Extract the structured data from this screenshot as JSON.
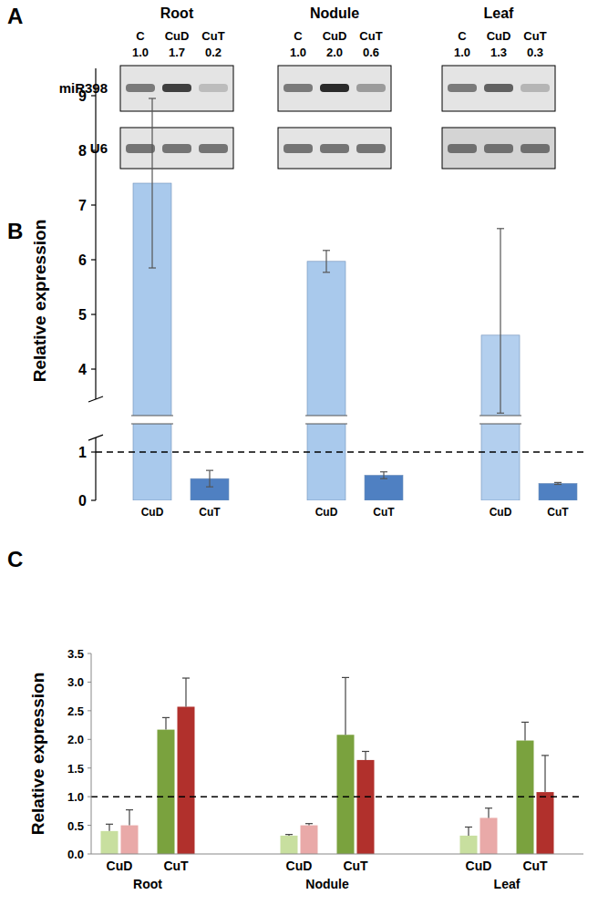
{
  "chart_data": [
    {
      "type": "blot",
      "title": "A",
      "row_labels": [
        "miR398",
        "U6"
      ],
      "panels": [
        {
          "name": "Root",
          "categories": [
            "C",
            "CuD",
            "CuT"
          ],
          "values": [
            1.0,
            1.7,
            0.2
          ],
          "value_labels": [
            "1.0",
            "1.7",
            "0.2"
          ]
        },
        {
          "name": "Nodule",
          "categories": [
            "C",
            "CuD",
            "CuT"
          ],
          "values": [
            1.0,
            2.0,
            0.6
          ],
          "value_labels": [
            "1.0",
            "2.0",
            "0.6"
          ]
        },
        {
          "name": "Leaf",
          "categories": [
            "C",
            "CuD",
            "CuT"
          ],
          "values": [
            1.0,
            1.3,
            0.3
          ],
          "value_labels": [
            "1.0",
            "1.3",
            "0.3"
          ]
        }
      ]
    },
    {
      "type": "bar",
      "title": "B",
      "y_label": "Relative expression",
      "categories": [
        "CuD",
        "CuT",
        "CuD",
        "CuT",
        "CuD",
        "CuT"
      ],
      "values": [
        7.4,
        0.45,
        5.97,
        0.52,
        4.62,
        0.35
      ],
      "errors": [
        1.55,
        0.17,
        0.2,
        0.07,
        1.95,
        0.02
      ],
      "colors": [
        "#a9c9ec",
        "#4f80c2",
        "#a9c9ec",
        "#4f80c2",
        "#b3cfee",
        "#4f80c2"
      ],
      "ylim": [
        0,
        9.5
      ],
      "ybreak": [
        1.3,
        3.45
      ],
      "yticks": [
        0,
        1,
        4,
        5,
        6,
        7,
        8,
        9
      ],
      "reference_line": 1
    },
    {
      "type": "bar",
      "title": "C",
      "y_label": "Relative expression",
      "groups": [
        "Root",
        "Nodule",
        "Leaf"
      ],
      "categories": [
        "CuD",
        "CuT",
        "CuD",
        "CuT",
        "CuD",
        "CuT"
      ],
      "series": [
        {
          "colors": [
            "#c8df9f",
            "#7aa23e",
            "#c8df9f",
            "#7aa23e",
            "#c8df9f",
            "#7aa23e"
          ],
          "values": [
            0.4,
            2.17,
            0.32,
            2.08,
            0.32,
            1.98
          ],
          "errors": [
            0.12,
            0.21,
            0.02,
            1.0,
            0.15,
            0.32
          ]
        },
        {
          "colors": [
            "#e9a9a8",
            "#b1302c",
            "#e9a9a8",
            "#b1302c",
            "#e9a9a8",
            "#b1302c"
          ],
          "values": [
            0.5,
            2.57,
            0.5,
            1.64,
            0.63,
            1.08
          ],
          "errors": [
            0.27,
            0.5,
            0.03,
            0.15,
            0.17,
            0.64
          ]
        }
      ],
      "ylim": [
        0,
        3.5
      ],
      "yticks": [
        {
          "value": 0,
          "label": "0.0"
        },
        0.5,
        {
          "value": 1,
          "label": "1.0"
        },
        1.5,
        {
          "value": 2,
          "label": "2.0"
        },
        2.5,
        {
          "value": 3,
          "label": "3.0"
        },
        3.5
      ],
      "reference_line": 1
    }
  ]
}
